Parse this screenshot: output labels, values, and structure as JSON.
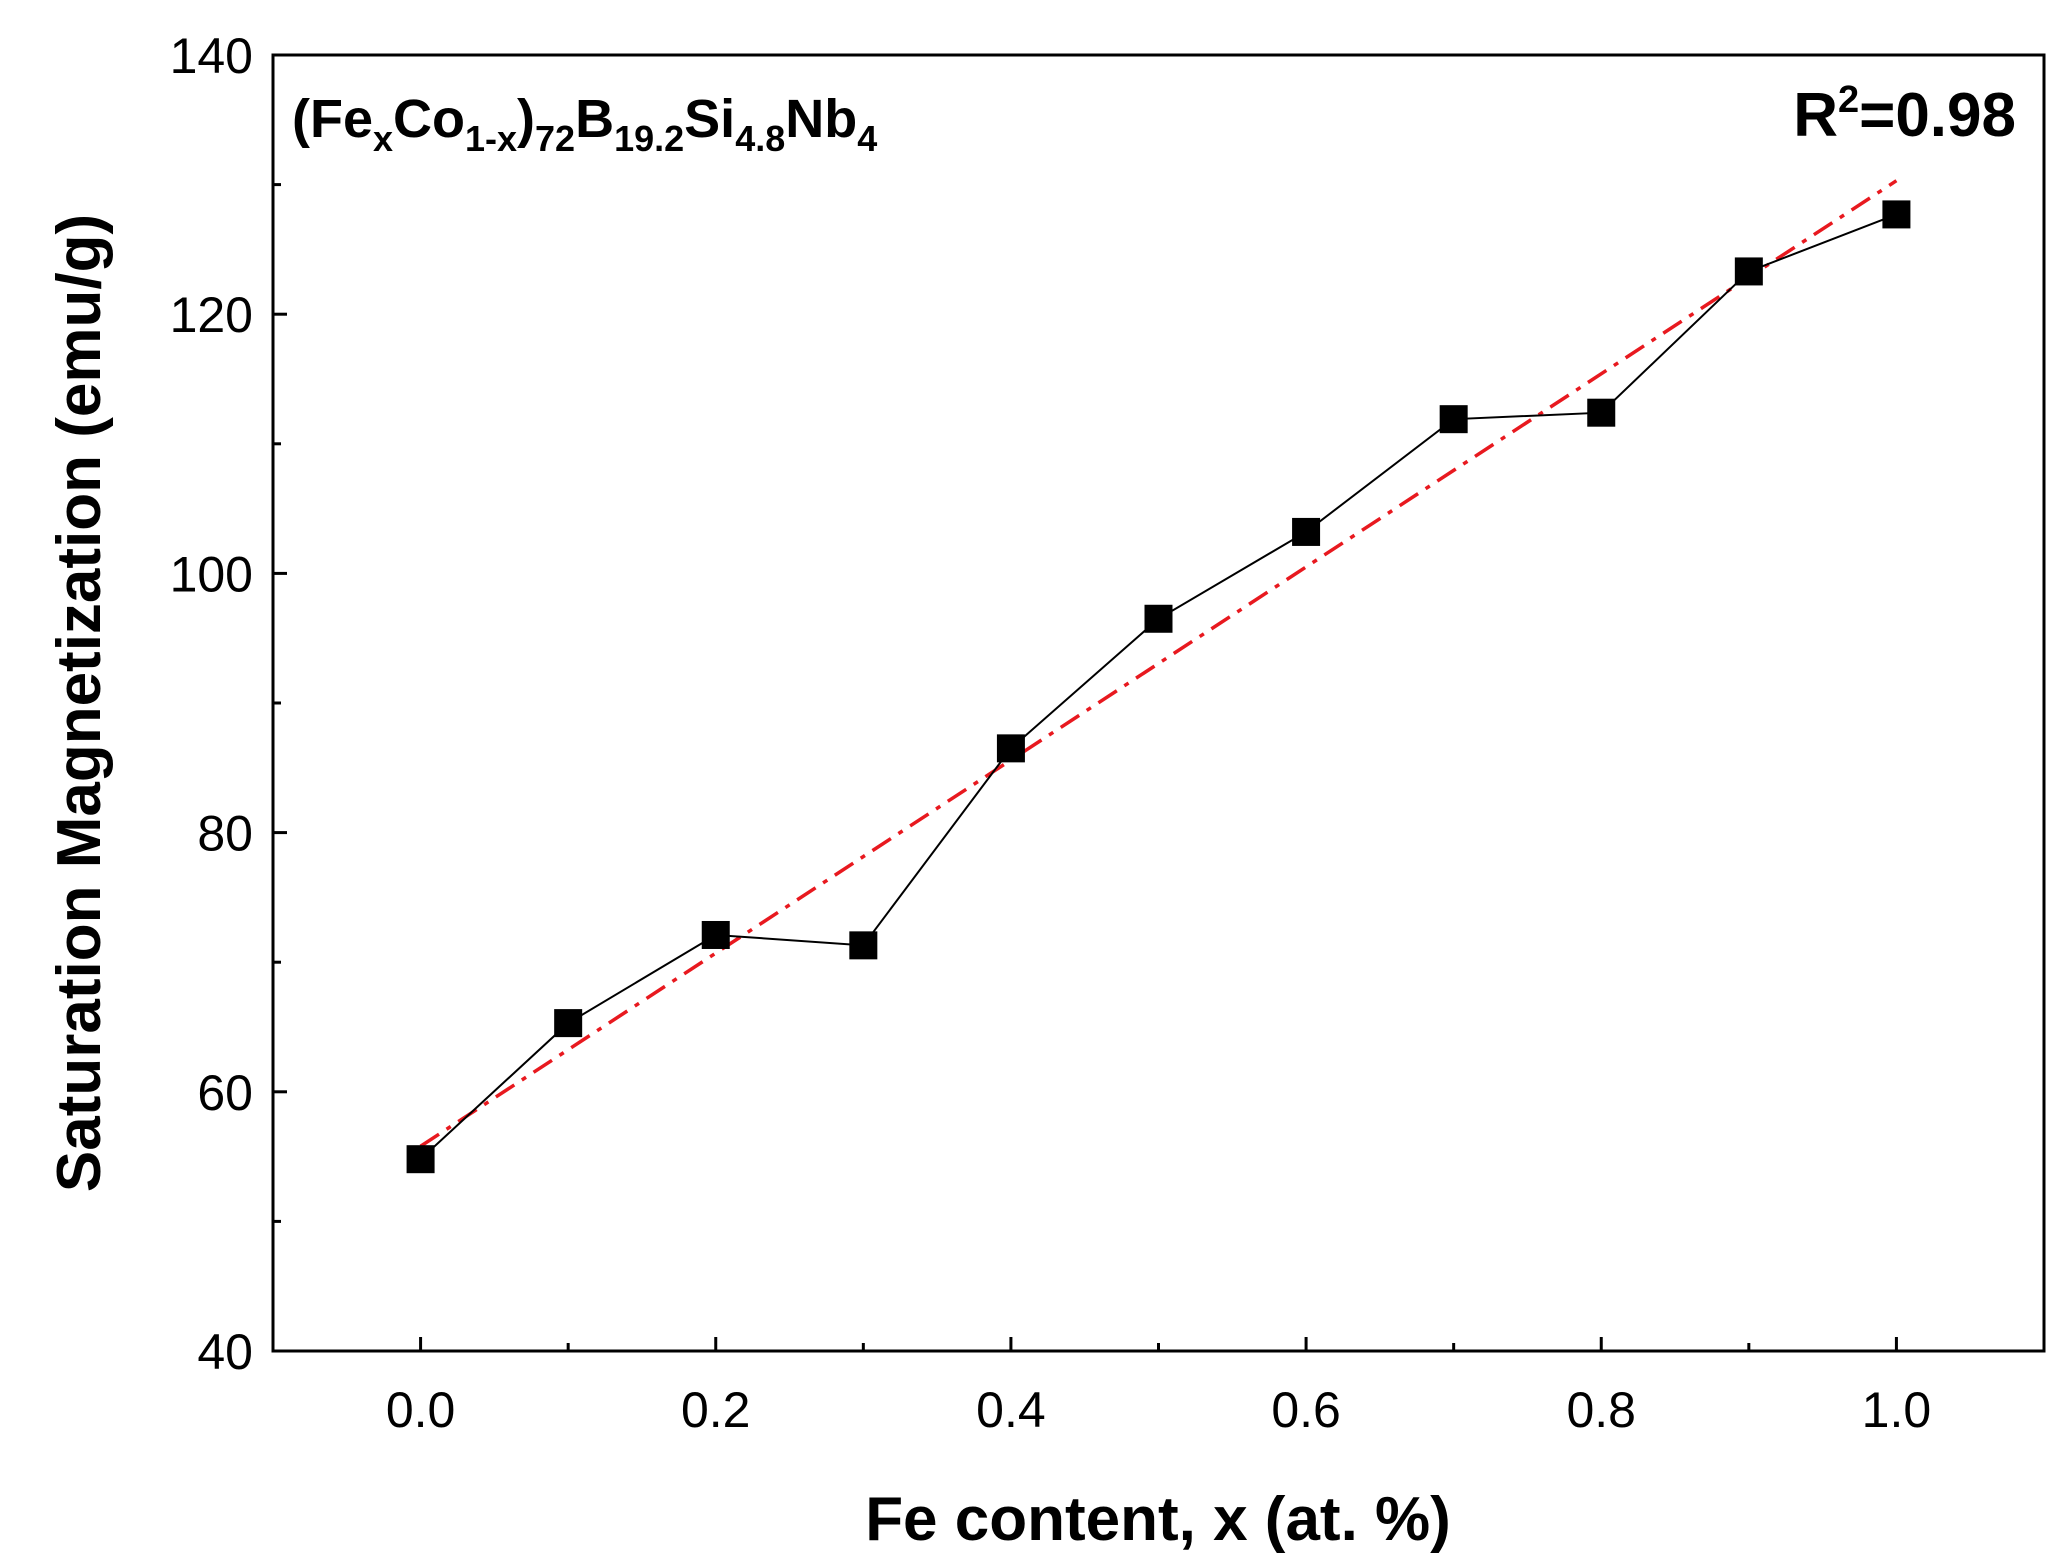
{
  "chart_data": {
    "type": "scatter",
    "title": "",
    "xlabel": "Fe content, x (at. %)",
    "ylabel": "Saturation Magnetization (emu/g)",
    "xlim": [
      -0.1,
      1.1
    ],
    "ylim": [
      40,
      140
    ],
    "x_ticks": [
      0.0,
      0.2,
      0.4,
      0.6,
      0.8,
      1.0
    ],
    "x_tick_labels": [
      "0.0",
      "0.2",
      "0.4",
      "0.6",
      "0.8",
      "1.0"
    ],
    "y_ticks": [
      40,
      60,
      80,
      100,
      120,
      140
    ],
    "y_tick_labels": [
      "40",
      "60",
      "80",
      "100",
      "120",
      "140"
    ],
    "x_minor_ticks": [
      -0.1,
      0.1,
      0.3,
      0.5,
      0.7,
      0.9,
      1.1
    ],
    "y_minor_ticks": [
      50,
      70,
      90,
      110,
      130
    ],
    "grid": false,
    "series": [
      {
        "style": "line+square-markers",
        "color": "#000000",
        "x": [
          0.0,
          0.1,
          0.2,
          0.3,
          0.4,
          0.5,
          0.6,
          0.7,
          0.8,
          0.9,
          1.0
        ],
        "y": [
          54.8,
          65.3,
          72.1,
          71.3,
          86.5,
          96.5,
          103.2,
          111.9,
          112.4,
          123.3,
          127.7
        ]
      }
    ],
    "fit_line": {
      "style": "dash-dot",
      "color": "#e8191f",
      "x": [
        0.0,
        1.0
      ],
      "y": [
        55.8,
        130.3
      ]
    },
    "annotations": {
      "formula": {
        "parts": [
          {
            "text": "(Fe",
            "sub": false
          },
          {
            "text": "x",
            "sub": true
          },
          {
            "text": "Co",
            "sub": false
          },
          {
            "text": "1-x",
            "sub": true
          },
          {
            "text": ")",
            "sub": false
          },
          {
            "text": "72",
            "sub": true
          },
          {
            "text": "B",
            "sub": false
          },
          {
            "text": "19.2",
            "sub": true
          },
          {
            "text": "Si",
            "sub": false
          },
          {
            "text": "4.8",
            "sub": true
          },
          {
            "text": "Nb",
            "sub": false
          },
          {
            "text": "4",
            "sub": true
          }
        ]
      },
      "r_squared": {
        "base": "R",
        "sup": "2",
        "value": "=0.98"
      }
    }
  }
}
